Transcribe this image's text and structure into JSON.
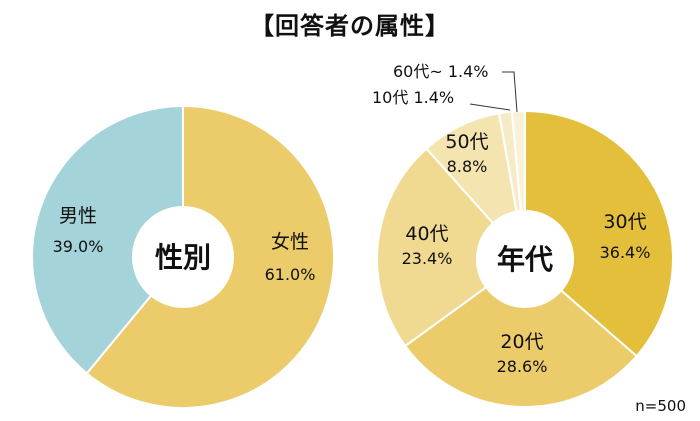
{
  "title": "【回答者の属性】",
  "note": "n=500",
  "chart_data": [
    {
      "type": "pie",
      "title": "性別",
      "categories": [
        "女性",
        "男性"
      ],
      "values": [
        61.0,
        39.0
      ],
      "value_labels": [
        "61.0%",
        "39.0%"
      ],
      "colors": [
        "#ebcb6a",
        "#a5d3da"
      ],
      "start": "12 o'clock",
      "direction": "clockwise",
      "donut": true
    },
    {
      "type": "pie",
      "title": "年代",
      "categories": [
        "30代",
        "20代",
        "40代",
        "50代",
        "10代",
        "60代~"
      ],
      "values": [
        36.4,
        28.6,
        23.4,
        8.8,
        1.4,
        1.4
      ],
      "value_labels": [
        "36.4%",
        "28.6%",
        "23.4%",
        "8.8%",
        "1.4%",
        "1.4%"
      ],
      "colors": [
        "#e3bf3c",
        "#ebcb6a",
        "#f0da92",
        "#f4e4b0",
        "#f7ebc7",
        "#faf1d9"
      ],
      "start": "12 o'clock",
      "direction": "clockwise",
      "donut": true
    }
  ]
}
